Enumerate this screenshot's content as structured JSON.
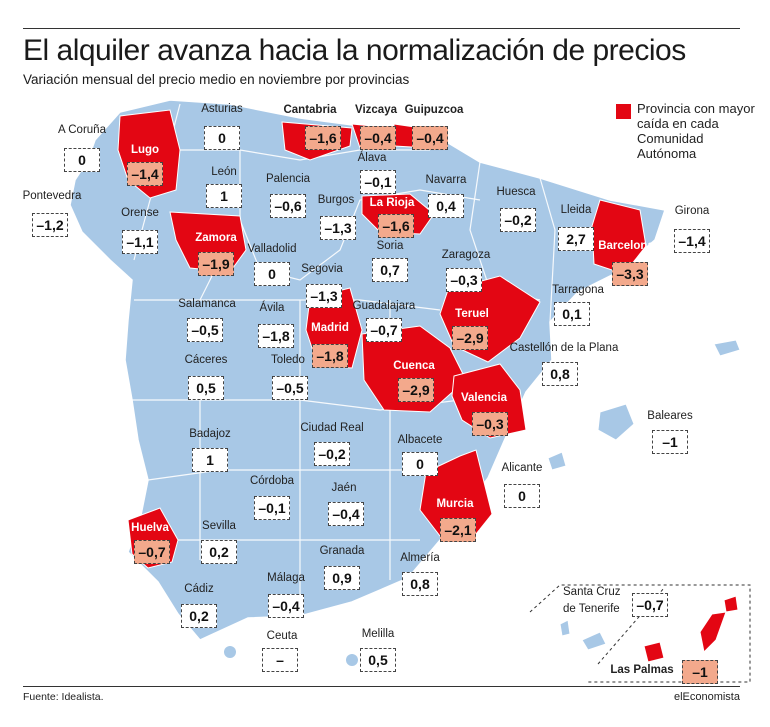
{
  "title": "El alquiler avanza hacia la normalización de precios",
  "subtitle": "Variación mensual del precio medio en noviembre por provincias",
  "legend": "Provincia con mayor caída en cada Comunidad Autónoma",
  "source": "Fuente: Idealista.",
  "brand": "elEconomista",
  "colors": {
    "map": "#a8c8e6",
    "highlight": "#e30613",
    "highlight_value_bg": "#f3a98c"
  },
  "provinces": [
    {
      "name": "A Coruña",
      "value": "0",
      "highlight": false
    },
    {
      "name": "Lugo",
      "value": "–1,4",
      "highlight": true
    },
    {
      "name": "Asturias",
      "value": "0",
      "highlight": false
    },
    {
      "name": "Cantabria",
      "value": "–1,6",
      "highlight": true
    },
    {
      "name": "Vizcaya",
      "value": "–0,4",
      "highlight": true
    },
    {
      "name": "Guipuzcoa",
      "value": "–0,4",
      "highlight": true
    },
    {
      "name": "Álava",
      "value": "–0,1",
      "highlight": false
    },
    {
      "name": "Pontevedra",
      "value": "–1,2",
      "highlight": false
    },
    {
      "name": "León",
      "value": "1",
      "highlight": false
    },
    {
      "name": "Palencia",
      "value": "–0,6",
      "highlight": false
    },
    {
      "name": "Burgos",
      "value": "–1,3",
      "highlight": false
    },
    {
      "name": "La Rioja",
      "value": "–1,6",
      "highlight": true
    },
    {
      "name": "Navarra",
      "value": "0,4",
      "highlight": false
    },
    {
      "name": "Huesca",
      "value": "–0,2",
      "highlight": false
    },
    {
      "name": "Lleida",
      "value": "2,7",
      "highlight": false
    },
    {
      "name": "Girona",
      "value": "–1,4",
      "highlight": false
    },
    {
      "name": "Orense",
      "value": "–1,1",
      "highlight": false
    },
    {
      "name": "Zamora",
      "value": "–1,9",
      "highlight": true
    },
    {
      "name": "Valladolid",
      "value": "0",
      "highlight": false
    },
    {
      "name": "Soria",
      "value": "0,7",
      "highlight": false
    },
    {
      "name": "Zaragoza",
      "value": "–0,3",
      "highlight": false
    },
    {
      "name": "Barcelona",
      "value": "–3,3",
      "highlight": true
    },
    {
      "name": "Segovia",
      "value": "–1,3",
      "highlight": false
    },
    {
      "name": "Tarragona",
      "value": "0,1",
      "highlight": false
    },
    {
      "name": "Salamanca",
      "value": "–0,5",
      "highlight": false
    },
    {
      "name": "Ávila",
      "value": "–1,8",
      "highlight": false
    },
    {
      "name": "Guadalajara",
      "value": "–0,7",
      "highlight": false
    },
    {
      "name": "Teruel",
      "value": "–2,9",
      "highlight": true
    },
    {
      "name": "Madrid",
      "value": "–1,8",
      "highlight": true
    },
    {
      "name": "Castellón de la Plana",
      "value": "0,8",
      "highlight": false
    },
    {
      "name": "Cáceres",
      "value": "0,5",
      "highlight": false
    },
    {
      "name": "Toledo",
      "value": "–0,5",
      "highlight": false
    },
    {
      "name": "Cuenca",
      "value": "–2,9",
      "highlight": true
    },
    {
      "name": "Valencia",
      "value": "–0,3",
      "highlight": true
    },
    {
      "name": "Baleares",
      "value": "–1",
      "highlight": false
    },
    {
      "name": "Badajoz",
      "value": "1",
      "highlight": false
    },
    {
      "name": "Ciudad Real",
      "value": "–0,2",
      "highlight": false
    },
    {
      "name": "Albacete",
      "value": "0",
      "highlight": false
    },
    {
      "name": "Alicante",
      "value": "0",
      "highlight": false
    },
    {
      "name": "Córdoba",
      "value": "–0,1",
      "highlight": false
    },
    {
      "name": "Jaén",
      "value": "–0,4",
      "highlight": false
    },
    {
      "name": "Murcia",
      "value": "–2,1",
      "highlight": true
    },
    {
      "name": "Huelva",
      "value": "–0,7",
      "highlight": true
    },
    {
      "name": "Sevilla",
      "value": "0,2",
      "highlight": false
    },
    {
      "name": "Granada",
      "value": "0,9",
      "highlight": false
    },
    {
      "name": "Almería",
      "value": "0,8",
      "highlight": false
    },
    {
      "name": "Cádiz",
      "value": "0,2",
      "highlight": false
    },
    {
      "name": "Málaga",
      "value": "–0,4",
      "highlight": false
    },
    {
      "name": "Santa Cruz de Tenerife",
      "value": "–0,7",
      "highlight": false
    },
    {
      "name": "Ceuta",
      "value": "–",
      "highlight": false
    },
    {
      "name": "Melilla",
      "value": "0,5",
      "highlight": false
    },
    {
      "name": "Las Palmas",
      "value": "–1",
      "highlight": true
    }
  ]
}
